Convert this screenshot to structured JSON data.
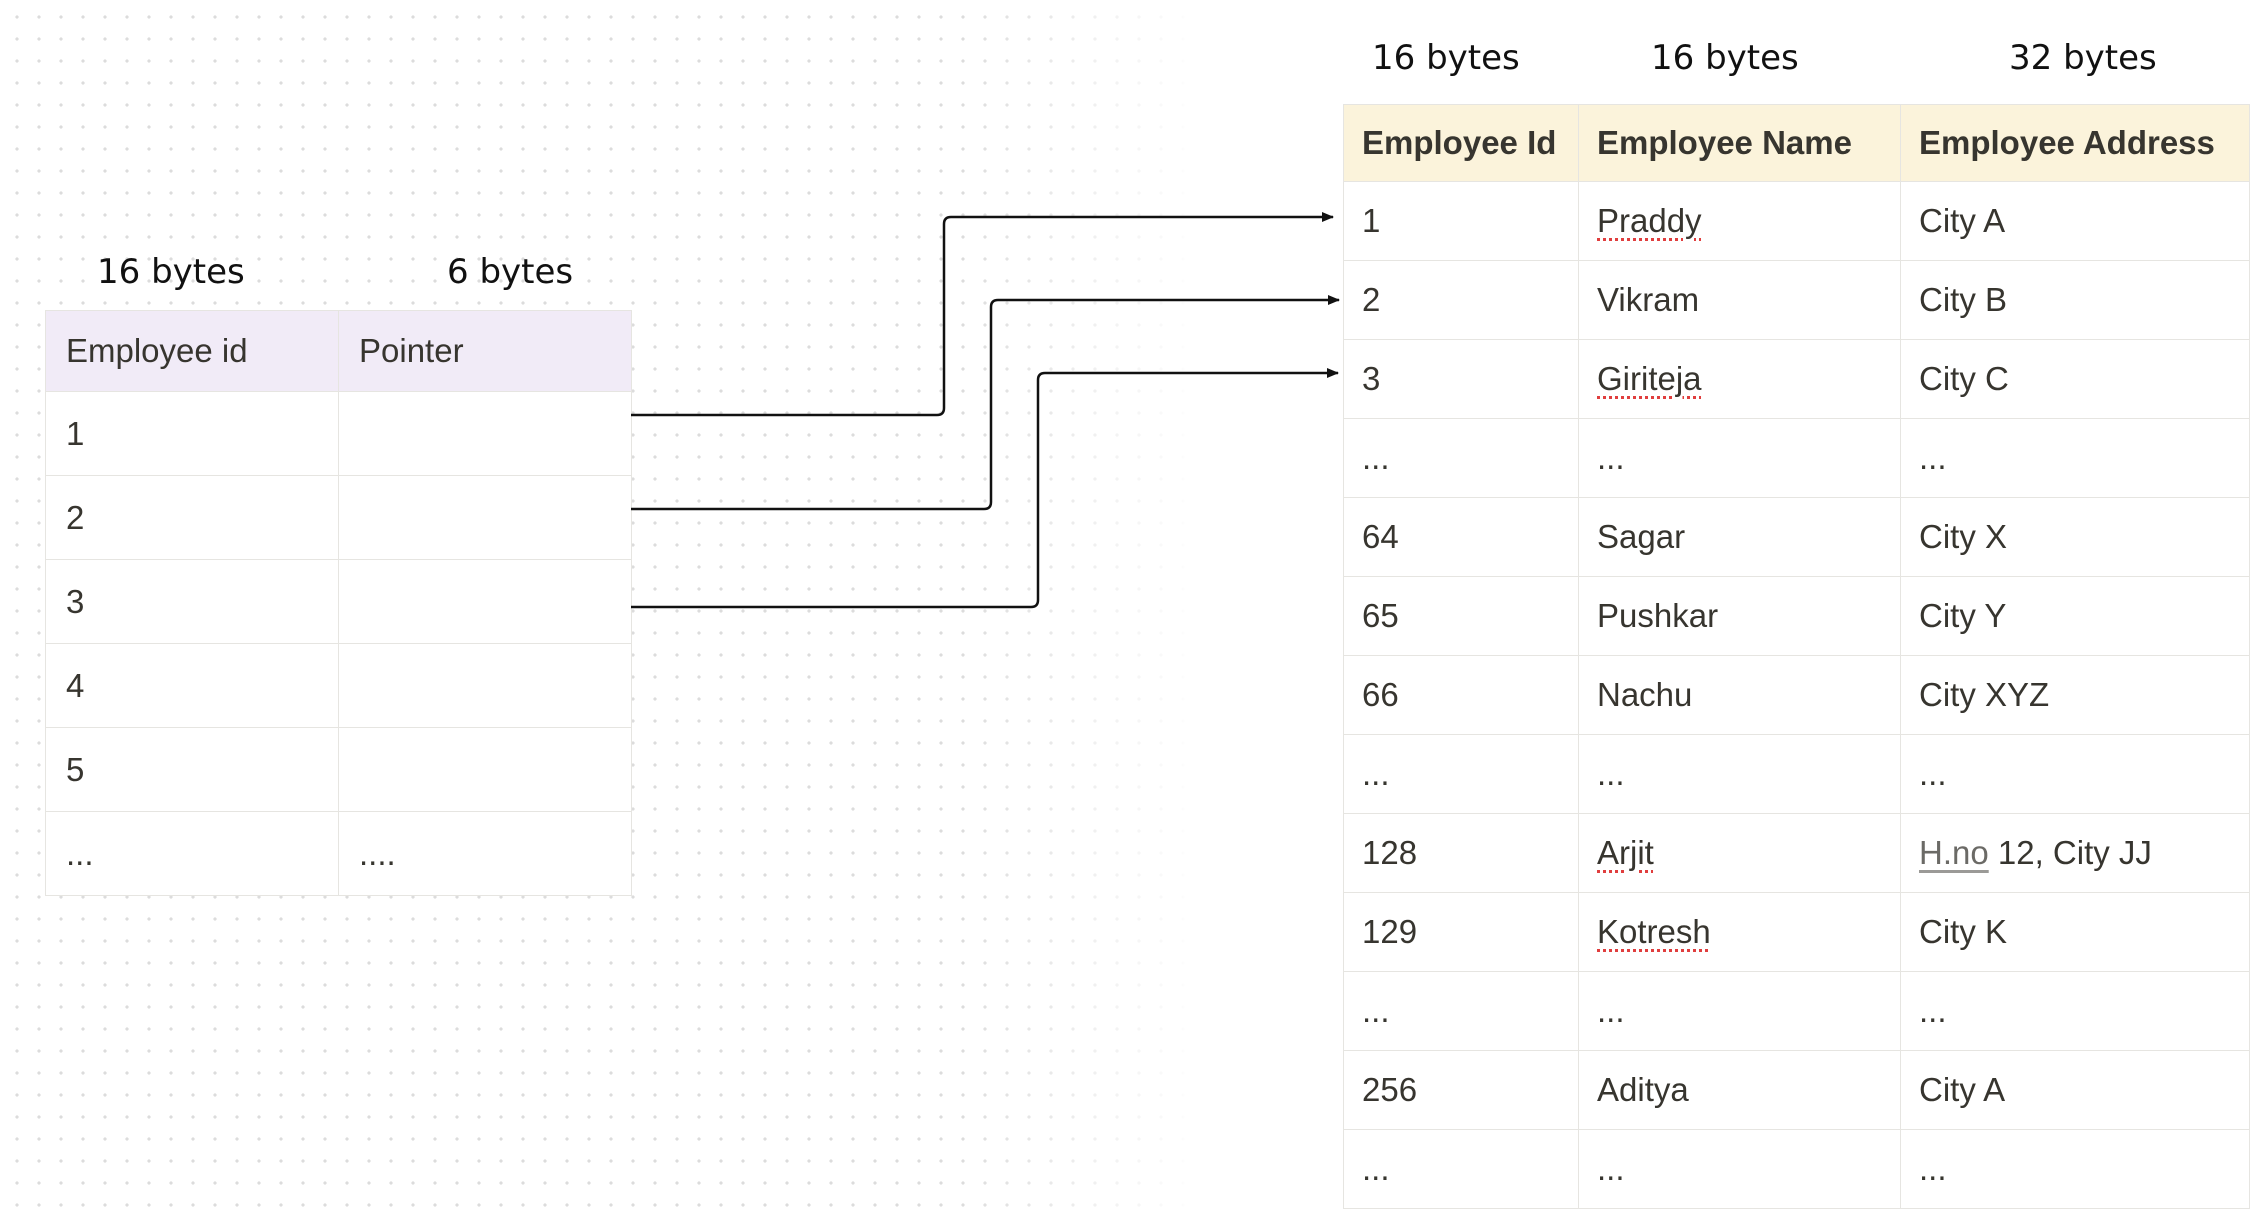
{
  "index_table": {
    "size_labels": [
      "16 bytes",
      "6 bytes"
    ],
    "headers": [
      "Employee id",
      "Pointer"
    ],
    "rows": [
      [
        "1",
        ""
      ],
      [
        "2",
        ""
      ],
      [
        "3",
        ""
      ],
      [
        "4",
        ""
      ],
      [
        "5",
        ""
      ],
      [
        "...",
        "...."
      ]
    ]
  },
  "data_table": {
    "size_labels": [
      "16 bytes",
      "16 bytes",
      "32 bytes"
    ],
    "headers": [
      "Employee Id",
      "Employee Name",
      "Employee Address"
    ],
    "rows": [
      [
        "1",
        "Praddy",
        "City A"
      ],
      [
        "2",
        "Vikram",
        "City B"
      ],
      [
        "3",
        "Giriteja",
        "City C"
      ],
      [
        "...",
        "...",
        "..."
      ],
      [
        "64",
        "Sagar",
        "City X"
      ],
      [
        "65",
        "Pushkar",
        "City Y"
      ],
      [
        "66",
        "Nachu",
        "City XYZ"
      ],
      [
        "...",
        "...",
        "..."
      ],
      [
        "128",
        "Arjit",
        "H.no 12, City JJ"
      ],
      [
        "129",
        "Kotresh",
        "City K"
      ],
      [
        "...",
        "...",
        "..."
      ],
      [
        "256",
        "Aditya",
        "City A"
      ],
      [
        "...",
        "...",
        "..."
      ]
    ],
    "address_split": {
      "link_part": "H.no",
      "rest_part": " 12, City JJ"
    }
  },
  "colors": {
    "index_header_bg": "#f1ebf7",
    "data_header_bg": "#fbf3db",
    "grid_line": "#e6e5e1",
    "spellcheck_underline": "#e03e3e",
    "arrow": "#111111"
  }
}
